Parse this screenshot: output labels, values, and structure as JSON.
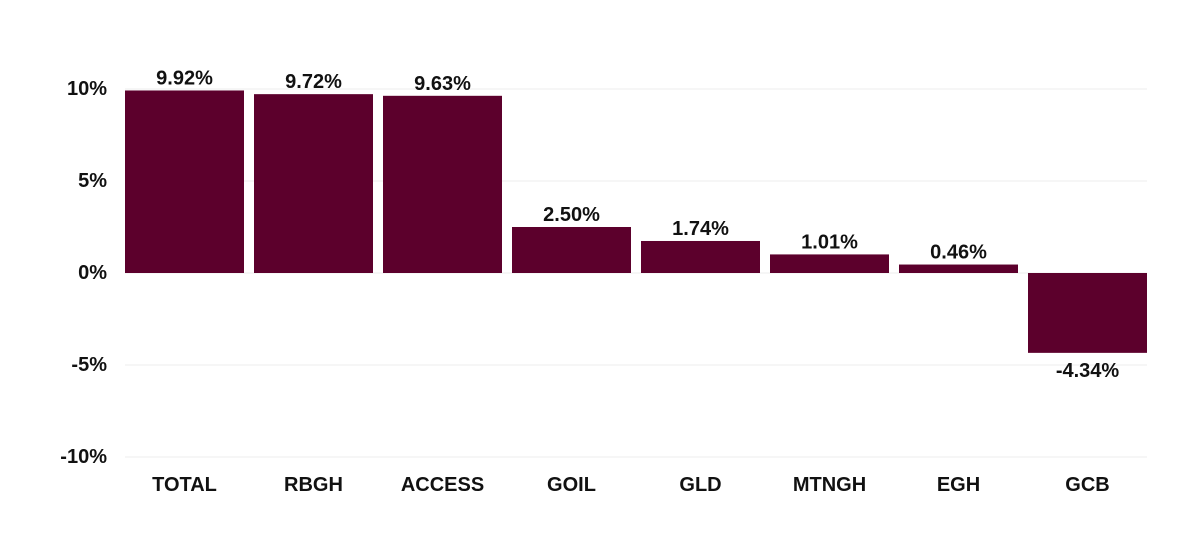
{
  "chart_data": {
    "type": "bar",
    "categories": [
      "TOTAL",
      "RBGH",
      "ACCESS",
      "GOIL",
      "GLD",
      "MTNGH",
      "EGH",
      "GCB"
    ],
    "values": [
      9.92,
      9.72,
      9.63,
      2.5,
      1.74,
      1.01,
      0.46,
      -4.34
    ],
    "data_labels": [
      "9.92%",
      "9.72%",
      "9.63%",
      "2.50%",
      "1.74%",
      "1.01%",
      "0.46%",
      "-4.34%"
    ],
    "yticks": [
      10,
      5,
      0,
      -5,
      -10
    ],
    "ytick_labels": [
      "10%",
      "5%",
      "0%",
      "-5%",
      "-10%"
    ],
    "ylim": [
      -10,
      10
    ],
    "grid": true,
    "bar_color": "#5c002c",
    "title": "",
    "xlabel": "",
    "ylabel": ""
  }
}
